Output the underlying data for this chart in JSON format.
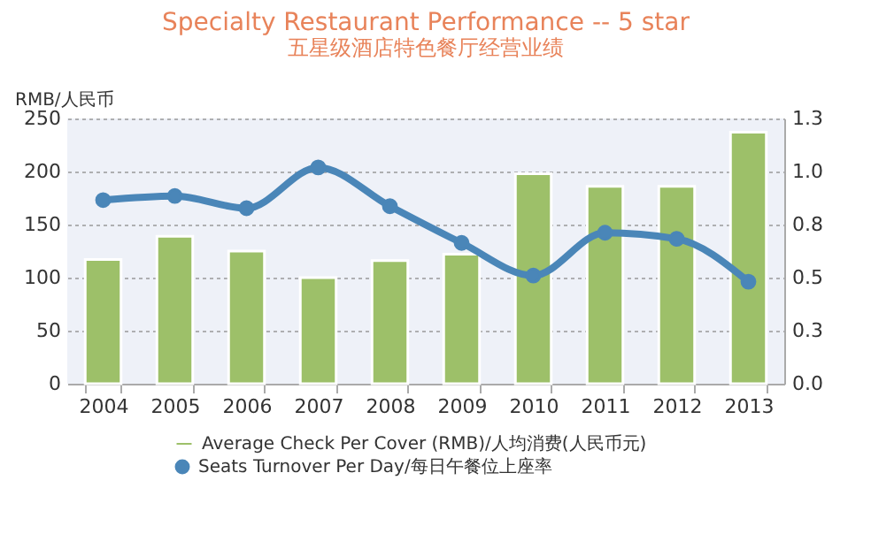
{
  "chart_data": {
    "type": "bar",
    "title": "Specialty Restaurant Performance -- 5 star",
    "subtitle": "五星级酒店特色餐厅经营业绩",
    "ylabel": "RMB/人民币",
    "categories": [
      "2004",
      "2005",
      "2006",
      "2007",
      "2008",
      "2009",
      "2010",
      "2011",
      "2012",
      "2013"
    ],
    "series": [
      {
        "name": "Average Check Per Cover (RMB)/人均消费(人民币元)",
        "color": "#9dc069",
        "values": [
          117,
          139,
          125,
          100,
          116,
          122,
          198,
          186,
          186,
          237
        ]
      },
      {
        "name": "Seats Turnover Per Day/每日午餐位上座率",
        "type": "line",
        "axis": "y2",
        "color": "#4a86b8",
        "values": [
          0.9,
          0.92,
          0.86,
          1.06,
          0.87,
          0.69,
          0.53,
          0.74,
          0.71,
          0.5
        ]
      }
    ],
    "ylim": [
      0,
      250
    ],
    "yticks": [
      0,
      50,
      100,
      150,
      200,
      250
    ],
    "y2lim": [
      0,
      1.3
    ],
    "y2ticks": [
      {
        "value": 0,
        "label": "0.0"
      },
      {
        "value": 0.26,
        "label": "0.3"
      },
      {
        "value": 0.52,
        "label": "0.5"
      },
      {
        "value": 0.78,
        "label": "0.8"
      },
      {
        "value": 1.04,
        "label": "1.0"
      },
      {
        "value": 1.3,
        "label": "1.3"
      }
    ],
    "grid": "y",
    "legend": "bottom",
    "marker": "circle",
    "line_style": "solid"
  }
}
